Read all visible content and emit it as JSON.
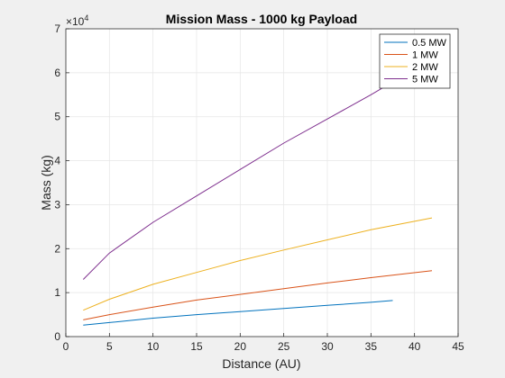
{
  "chart_data": {
    "type": "line",
    "title": "Mission Mass - 1000 kg Payload",
    "xlabel": "Distance (AU)",
    "ylabel": "Mass (kg)",
    "xlim": [
      0,
      45
    ],
    "ylim": [
      0,
      70000
    ],
    "xticks": [
      0,
      5,
      10,
      15,
      20,
      25,
      30,
      35,
      40,
      45
    ],
    "yticks": [
      0,
      10000,
      20000,
      30000,
      40000,
      50000,
      60000,
      70000
    ],
    "ytick_labels": [
      "0",
      "1",
      "2",
      "3",
      "4",
      "5",
      "6",
      "7"
    ],
    "y_exponent": {
      "base": "×10",
      "exp": "4"
    },
    "grid": true,
    "legend_position": "top-right",
    "series": [
      {
        "name": "0.5 MW",
        "color": "#0072BD",
        "x": [
          2,
          5,
          10,
          15,
          20,
          25,
          30,
          35,
          37.5
        ],
        "y": [
          2600,
          3200,
          4200,
          5000,
          5700,
          6400,
          7100,
          7800,
          8200
        ]
      },
      {
        "name": "1 MW",
        "color": "#D95319",
        "x": [
          2,
          5,
          10,
          15,
          20,
          25,
          30,
          35,
          42
        ],
        "y": [
          3800,
          5000,
          6700,
          8300,
          9600,
          10900,
          12200,
          13400,
          15000
        ]
      },
      {
        "name": "2 MW",
        "color": "#EDB120",
        "x": [
          2,
          5,
          10,
          15,
          20,
          25,
          30,
          35,
          42
        ],
        "y": [
          6000,
          8500,
          11900,
          14600,
          17300,
          19700,
          22000,
          24300,
          27000
        ]
      },
      {
        "name": "5 MW",
        "color": "#7E2F8E",
        "x": [
          2,
          5,
          10,
          15,
          20,
          25,
          30,
          35,
          38
        ],
        "y": [
          13000,
          19000,
          26000,
          32000,
          38000,
          44000,
          49500,
          55000,
          58500
        ]
      }
    ]
  }
}
